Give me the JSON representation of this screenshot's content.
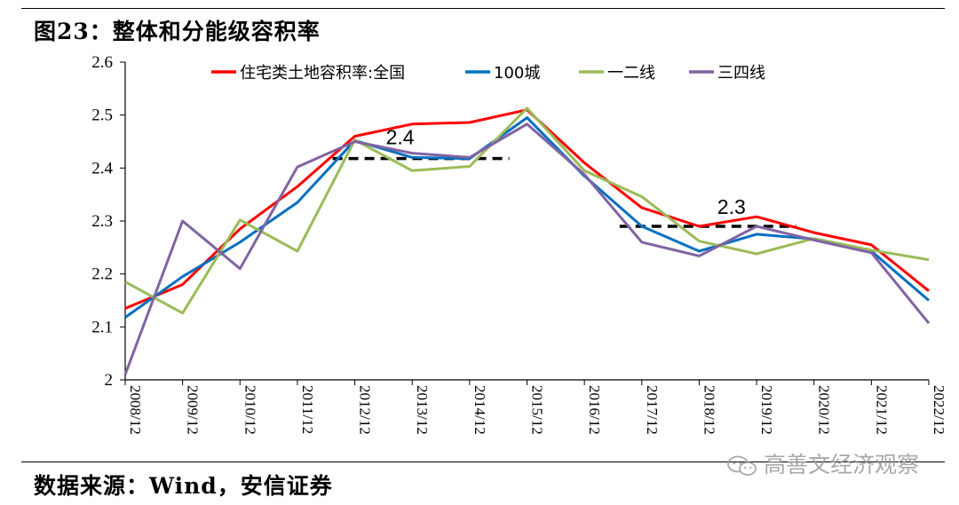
{
  "figure": {
    "title": "图23：整体和分能级容积率",
    "source": "数据来源：Wind，安信证券",
    "watermark": "高善文经济观察",
    "watermark_icon": "wechat-icon"
  },
  "chart_data": {
    "type": "line",
    "title": "",
    "xlabel": "",
    "ylabel": "",
    "ylim": [
      2.0,
      2.6
    ],
    "yticks": [
      "2",
      "2.1",
      "2.2",
      "2.3",
      "2.4",
      "2.5",
      "2.6"
    ],
    "grid": false,
    "legend_position": "top",
    "categories": [
      "2008/12",
      "2009/12",
      "2010/12",
      "2011/12",
      "2012/12",
      "2013/12",
      "2014/12",
      "2015/12",
      "2016/12",
      "2017/12",
      "2018/12",
      "2019/12",
      "2020/12",
      "2021/12",
      "2022/12"
    ],
    "series": [
      {
        "name": "住宅类土地容积率:全国",
        "color": "#ff0000",
        "values": [
          2.135,
          2.18,
          2.285,
          2.365,
          2.46,
          2.483,
          2.486,
          2.51,
          2.41,
          2.325,
          2.29,
          2.308,
          2.278,
          2.255,
          2.168
        ]
      },
      {
        "name": "100城",
        "color": "#0070c0",
        "values": [
          2.118,
          2.195,
          2.26,
          2.335,
          2.452,
          2.42,
          2.418,
          2.495,
          2.385,
          2.29,
          2.243,
          2.275,
          2.266,
          2.243,
          2.15
        ]
      },
      {
        "name": "一二线",
        "color": "#9bbb59",
        "values": [
          2.185,
          2.126,
          2.302,
          2.243,
          2.453,
          2.395,
          2.403,
          2.513,
          2.395,
          2.346,
          2.262,
          2.238,
          2.267,
          2.245,
          2.227
        ]
      },
      {
        "name": "三四线",
        "color": "#8064a2",
        "values": [
          2.01,
          2.3,
          2.21,
          2.402,
          2.45,
          2.428,
          2.42,
          2.483,
          2.388,
          2.26,
          2.234,
          2.29,
          2.264,
          2.24,
          2.107
        ]
      }
    ],
    "annotations": [
      {
        "text": "2.4",
        "style": "dashed",
        "color": "#000000",
        "y": 2.418,
        "x_from": "2012/12",
        "x_to": "2015/12"
      },
      {
        "text": "2.3",
        "style": "dashed",
        "color": "#000000",
        "y": 2.29,
        "x_from": "2017/12",
        "x_to": "2020/12"
      }
    ]
  }
}
